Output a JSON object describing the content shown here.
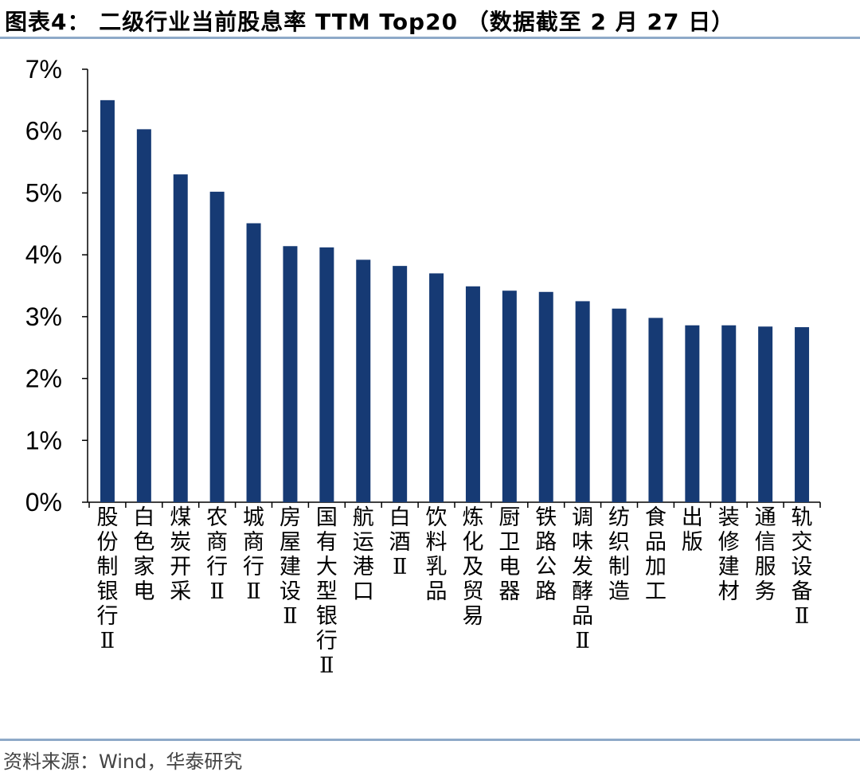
{
  "title": "图表4：  二级行业当前股息率 TTM Top20 （数据截至 2 月 27 日）",
  "source": "资料来源：Wind，华泰研究",
  "colors": {
    "bar": "#163a74",
    "rule": "#8ea9c8",
    "axis": "#000000"
  },
  "chart_data": {
    "type": "bar",
    "title": "二级行业当前股息率 TTM Top20",
    "xlabel": "",
    "ylabel": "",
    "ylim": [
      0,
      7
    ],
    "y_ticks": [
      "0%",
      "1%",
      "2%",
      "3%",
      "4%",
      "5%",
      "6%",
      "7%"
    ],
    "categories": [
      "股份制银行Ⅱ",
      "白色家电",
      "煤炭开采",
      "农商行Ⅱ",
      "城商行Ⅱ",
      "房屋建设Ⅱ",
      "国有大型银行Ⅱ",
      "航运港口",
      "白酒Ⅱ",
      "饮料乳品",
      "炼化及贸易",
      "厨卫电器",
      "铁路公路",
      "调味发酵品Ⅱ",
      "纺织制造",
      "食品加工",
      "出版",
      "装修建材",
      "通信服务",
      "轨交设备Ⅱ"
    ],
    "values": [
      6.5,
      6.03,
      5.3,
      5.02,
      4.51,
      4.14,
      4.12,
      3.92,
      3.82,
      3.7,
      3.49,
      3.42,
      3.4,
      3.25,
      3.13,
      2.98,
      2.86,
      2.86,
      2.84,
      2.83
    ],
    "grid": false,
    "legend": "none"
  }
}
